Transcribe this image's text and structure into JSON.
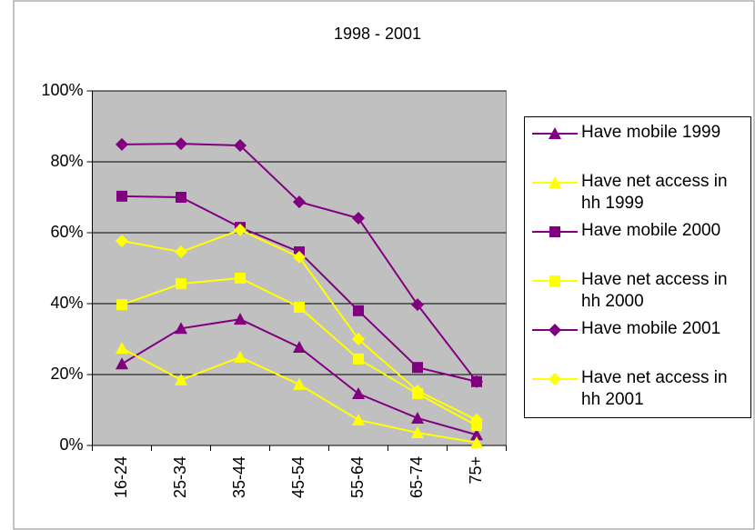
{
  "chart_data": {
    "type": "line",
    "title": "1998 - 2001",
    "categories": [
      "16-24",
      "25-34",
      "35-44",
      "45-54",
      "55-64",
      "65-74",
      "75+"
    ],
    "series": [
      {
        "name": "Have mobile 1999",
        "color": "#800080",
        "marker": "triangle",
        "values": [
          23,
          33,
          35.6,
          27.7,
          14.6,
          7.7,
          3
        ]
      },
      {
        "name": "Have net access in hh 1999",
        "color": "#ffff00",
        "marker": "triangle",
        "values": [
          27.4,
          18.5,
          24.9,
          17.2,
          7.2,
          3.6,
          0.8
        ]
      },
      {
        "name": "Have mobile 2000",
        "color": "#800080",
        "marker": "square",
        "values": [
          70.3,
          70,
          61.5,
          54.6,
          38,
          22,
          18
        ]
      },
      {
        "name": "Have net access in hh 2000",
        "color": "#ffff00",
        "marker": "square",
        "values": [
          39.7,
          45.6,
          47.2,
          39,
          24.4,
          14.6,
          5.6
        ]
      },
      {
        "name": "Have mobile 2001",
        "color": "#800080",
        "marker": "diamond",
        "values": [
          84.9,
          85.1,
          84.6,
          68.7,
          64.1,
          39.7,
          18
        ]
      },
      {
        "name": "Have net access in hh 2001",
        "color": "#ffff00",
        "marker": "diamond",
        "values": [
          57.7,
          54.6,
          60.8,
          53.1,
          30,
          15.4,
          7.2
        ]
      }
    ],
    "ylim": [
      0,
      100
    ],
    "yticks": [
      {
        "value": 0,
        "label": "0%"
      },
      {
        "value": 20,
        "label": "20%"
      },
      {
        "value": 40,
        "label": "40%"
      },
      {
        "value": 60,
        "label": "60%"
      },
      {
        "value": 80,
        "label": "80%"
      },
      {
        "value": 100,
        "label": "100%"
      }
    ],
    "grid": true
  }
}
